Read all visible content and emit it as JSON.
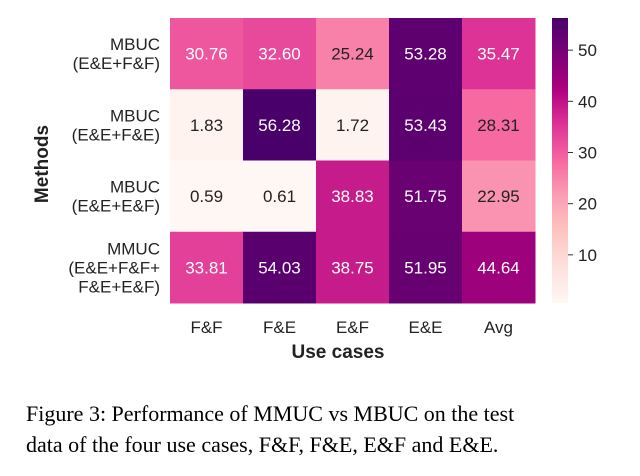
{
  "chart_data": {
    "type": "heatmap",
    "x": [
      "F&F",
      "F&E",
      "E&F",
      "E&E",
      "Avg"
    ],
    "y": [
      [
        "MBUC",
        "(E&E+F&F)"
      ],
      [
        "MBUC",
        "(E&E+F&E)"
      ],
      [
        "MBUC",
        "(E&E+E&F)"
      ],
      [
        "MMUC",
        "(E&E+F&F+",
        "F&E+E&F)"
      ]
    ],
    "values": [
      [
        30.76,
        32.6,
        25.24,
        53.28,
        35.47
      ],
      [
        1.83,
        56.28,
        1.72,
        53.43,
        28.31
      ],
      [
        0.59,
        0.61,
        38.83,
        51.75,
        22.95
      ],
      [
        33.81,
        54.03,
        38.75,
        51.95,
        44.64
      ]
    ],
    "xlabel": "Use cases",
    "ylabel": "Methods",
    "colorbar": {
      "min": 0.59,
      "max": 56.28,
      "ticks": [
        10,
        20,
        30,
        40,
        50
      ]
    },
    "colormap": [
      "#fff7f3",
      "#fde0dd",
      "#fcc5c0",
      "#fa9fb5",
      "#f768a1",
      "#dd3497",
      "#ae017e",
      "#7a0177",
      "#49006a"
    ],
    "grid": false,
    "legend": "none"
  },
  "caption": {
    "line1": "Figure 3: Performance of MMUC vs MBUC on the test",
    "line2": "data of the four use cases, F&F, F&E, E&F and E&E."
  }
}
